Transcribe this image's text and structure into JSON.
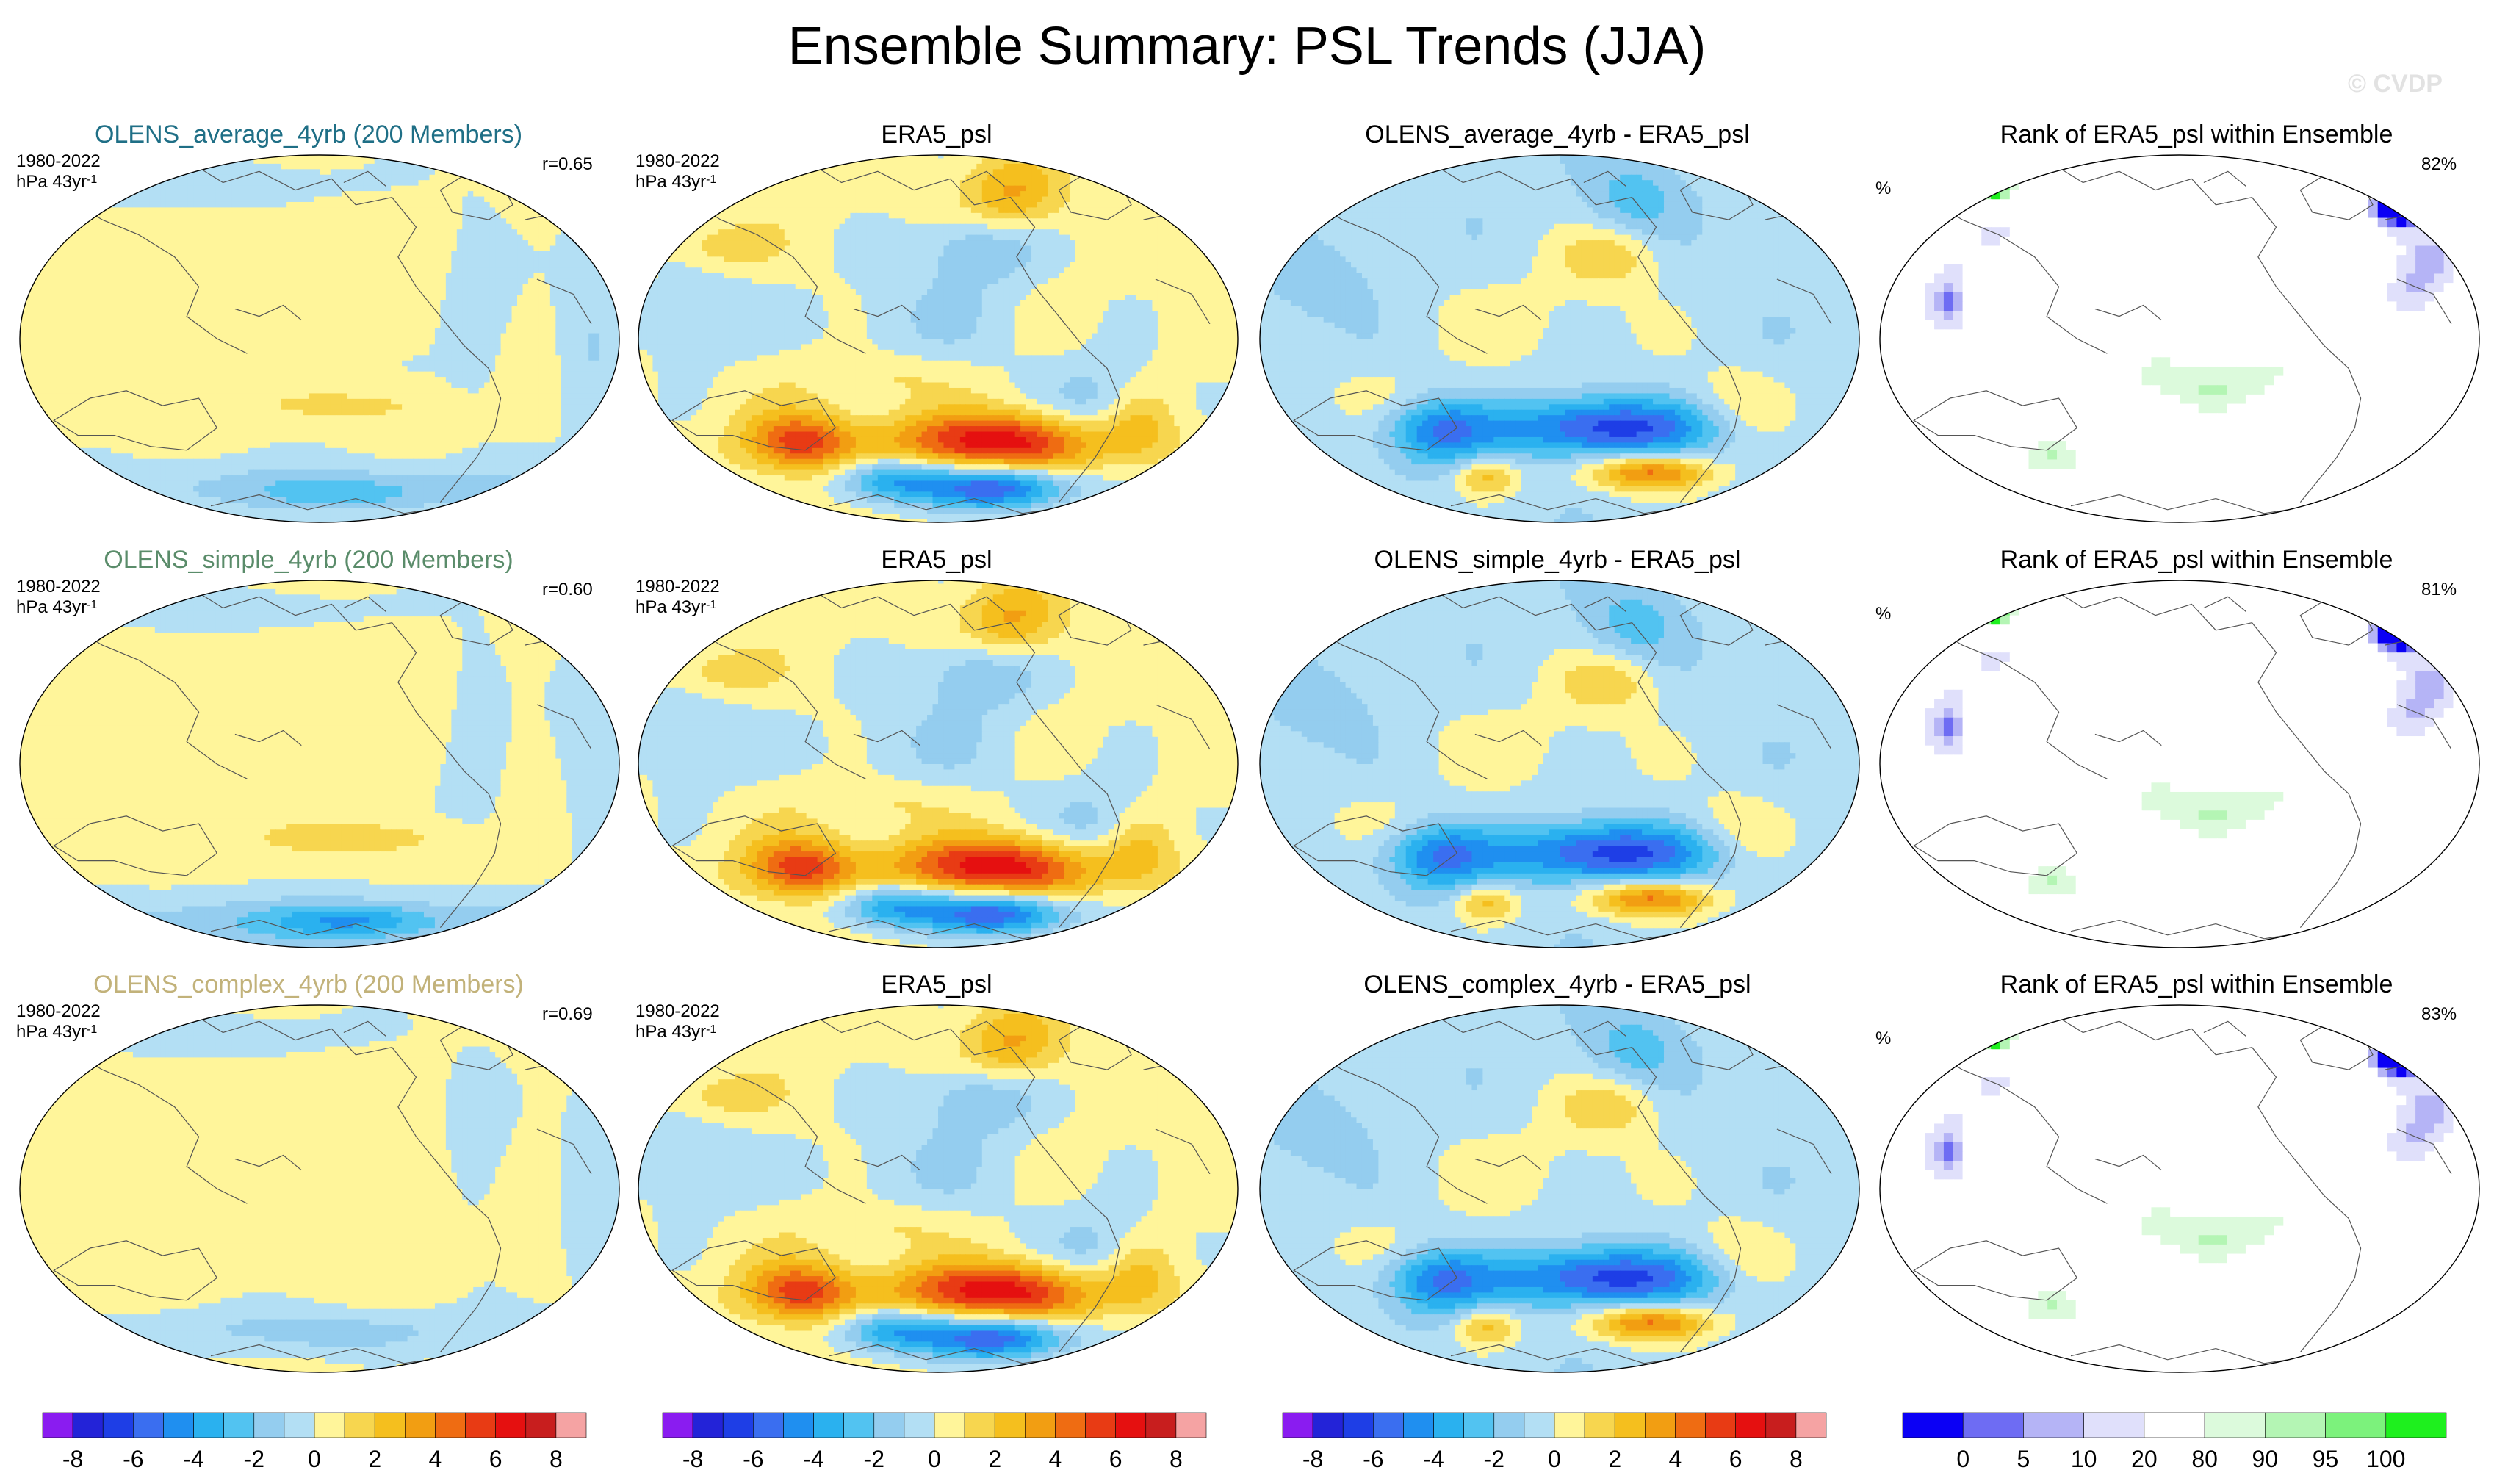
{
  "title": "Ensemble Summary: PSL Trends (JJA)",
  "watermark": "© CVDP",
  "chart_data": {
    "type": "map-panel-grid",
    "season": "JJA",
    "variable": "PSL",
    "rows": [
      {
        "ensemble": {
          "title": "OLENS_average_4yrb (200 Members)",
          "title_color": "#1f6f86",
          "period": "1980-2022",
          "units": "hPa 43yr",
          "units_sup": "-1",
          "pattern_corr": "r=0.65"
        },
        "obs": {
          "title": "ERA5_psl",
          "period": "1980-2022",
          "units": "hPa 43yr",
          "units_sup": "-1"
        },
        "diff": {
          "title": "OLENS_average_4yrb - ERA5_psl"
        },
        "rank": {
          "title": "Rank of ERA5_psl within Ensemble",
          "units": "%",
          "percent_within": "82%"
        }
      },
      {
        "ensemble": {
          "title": "OLENS_simple_4yrb (200 Members)",
          "title_color": "#5a8c6a",
          "period": "1980-2022",
          "units": "hPa 43yr",
          "units_sup": "-1",
          "pattern_corr": "r=0.60"
        },
        "obs": {
          "title": "ERA5_psl",
          "period": "1980-2022",
          "units": "hPa 43yr",
          "units_sup": "-1"
        },
        "diff": {
          "title": "OLENS_simple_4yrb - ERA5_psl"
        },
        "rank": {
          "title": "Rank of ERA5_psl within Ensemble",
          "units": "%",
          "percent_within": "81%"
        }
      },
      {
        "ensemble": {
          "title": "OLENS_complex_4yrb (200 Members)",
          "title_color": "#c2b27a",
          "period": "1980-2022",
          "units": "hPa 43yr",
          "units_sup": "-1",
          "pattern_corr": "r=0.69"
        },
        "obs": {
          "title": "ERA5_psl",
          "period": "1980-2022",
          "units": "hPa 43yr",
          "units_sup": "-1"
        },
        "diff": {
          "title": "OLENS_complex_4yrb - ERA5_psl"
        },
        "rank": {
          "title": "Rank of ERA5_psl within Ensemble",
          "units": "%",
          "percent_within": "83%"
        }
      }
    ],
    "trend_colorbar": {
      "levels": [
        -8,
        -7,
        -6,
        -5,
        -4,
        -3,
        -2,
        -1,
        0,
        1,
        2,
        3,
        4,
        5,
        6,
        7,
        8
      ],
      "labels": [
        "-8",
        "-6",
        "-4",
        "-2",
        "0",
        "2",
        "4",
        "6",
        "8"
      ],
      "colors": [
        "#8a1cf0",
        "#2323d8",
        "#1e3ee6",
        "#3a6ef0",
        "#1f8ff0",
        "#2ab1ef",
        "#52c3f1",
        "#94cdef",
        "#b3dff4",
        "#fff59a",
        "#f7d64f",
        "#f5bf1e",
        "#f29e12",
        "#ef6c12",
        "#e83b14",
        "#e51010",
        "#c81e1e",
        "#f5a3a3"
      ]
    },
    "rank_colorbar": {
      "levels": [
        0,
        5,
        10,
        20,
        80,
        90,
        95,
        100
      ],
      "labels": [
        "0",
        "5",
        "10",
        "20",
        "80",
        "90",
        "95",
        "100"
      ],
      "colors": [
        "#0b00f5",
        "#6e6cf3",
        "#b5b4f6",
        "#e0e0fb",
        "#ffffff",
        "#dcfadc",
        "#b4f5b4",
        "#7cf27c",
        "#1ef01e"
      ]
    }
  }
}
